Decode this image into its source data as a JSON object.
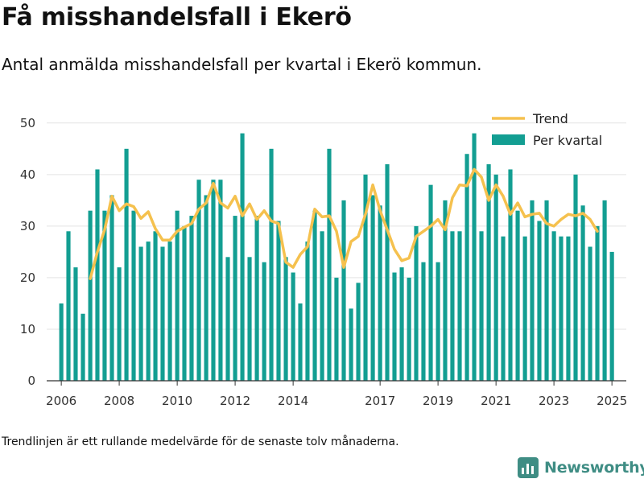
{
  "title": "Få misshandelsfall i Ekerö",
  "subtitle": "Antal anmälda misshandelsfall per kvartal i Ekerö kommun.",
  "footnote": "Trendlinjen är ett rullande medelvärde för de senaste tolv månaderna.",
  "brand": "Newsworthy",
  "colors": {
    "bar": "#139e92",
    "trend": "#f5c14e",
    "grid": "#e3e3e3",
    "axis": "#333333",
    "brand": "#3f8d84"
  },
  "chart_data": {
    "type": "bar",
    "x_start": "2006-01-01",
    "x_range": [
      "2005-07-01",
      "2025-07-01"
    ],
    "ylim": [
      0,
      52
    ],
    "yticks": [
      0,
      10,
      20,
      30,
      40,
      50
    ],
    "xticks": [
      "2006",
      "2008",
      "2010",
      "2012",
      "2014",
      "2017",
      "2019",
      "2021",
      "2023",
      "2025"
    ],
    "grid": true,
    "legend_position": "top-right",
    "series": [
      {
        "name": "Per kvartal",
        "type": "bar",
        "values": [
          15,
          29,
          22,
          13,
          33,
          41,
          33,
          36,
          22,
          45,
          33,
          26,
          27,
          29,
          26,
          27,
          33,
          30,
          32,
          39,
          36,
          39,
          39,
          24,
          32,
          48,
          24,
          32,
          23,
          45,
          31,
          24,
          21,
          15,
          27,
          33,
          29,
          45,
          20,
          35,
          14,
          19,
          40,
          36,
          34,
          42,
          21,
          22,
          20,
          30,
          23,
          38,
          23,
          35,
          29,
          29,
          44,
          48,
          29,
          42,
          40,
          28,
          41,
          33,
          28,
          35,
          31,
          35,
          29,
          28,
          28,
          40,
          34,
          26,
          30,
          35,
          25
        ]
      },
      {
        "name": "Trend",
        "type": "line",
        "start_index": 4,
        "values": [
          19.8,
          25.0,
          29.3,
          35.8,
          33.0,
          34.3,
          33.8,
          31.5,
          32.8,
          29.5,
          27.3,
          27.3,
          29.0,
          29.8,
          30.5,
          33.3,
          34.5,
          38.3,
          34.5,
          33.5,
          35.8,
          32.0,
          34.3,
          31.3,
          33.0,
          31.0,
          30.5,
          23.0,
          22.0,
          24.5,
          26.0,
          33.3,
          31.8,
          32.0,
          29.0,
          22.0,
          27.0,
          28.0,
          32.3,
          38.0,
          33.0,
          29.3,
          25.5,
          23.3,
          23.8,
          28.0,
          29.0,
          30.0,
          31.3,
          29.3,
          35.5,
          38.0,
          37.8,
          41.0,
          39.5,
          35.0,
          38.0,
          35.8,
          32.3,
          34.5,
          31.8,
          32.3,
          32.5,
          30.5,
          30.0,
          31.3,
          32.3,
          32.0,
          32.5,
          31.3,
          29.0
        ]
      }
    ]
  }
}
